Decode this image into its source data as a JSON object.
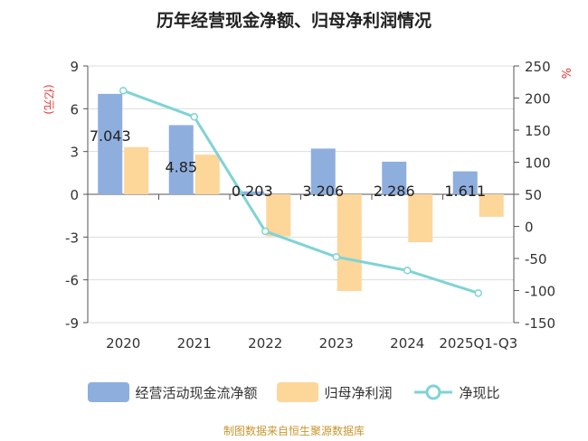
{
  "title": "历年经营现金净额、归母净利润情况",
  "source": "制图数据来自恒生聚源数据库",
  "chart_data": {
    "type": "bar+line",
    "categories": [
      "2020",
      "2021",
      "2022",
      "2023",
      "2024",
      "2025Q1-Q3"
    ],
    "left_axis": {
      "label": "(亿元)",
      "ylim": [
        -9,
        9
      ],
      "ticks": [
        9,
        6,
        3,
        0,
        -3,
        -6,
        -9
      ]
    },
    "right_axis": {
      "label": "%",
      "ylim": [
        -150,
        250
      ],
      "ticks": [
        250,
        200,
        150,
        100,
        50,
        0,
        -50,
        -100,
        -150
      ]
    },
    "grid": true,
    "legend": "bottom",
    "series": [
      {
        "name": "经营活动现金流净额",
        "type": "bar",
        "axis": "left",
        "color": "#8eaede",
        "values": [
          7.043,
          4.85,
          0.203,
          3.206,
          2.286,
          1.611
        ],
        "labels": [
          "7.043",
          "4.85",
          "0.203",
          "3.206",
          "2.286",
          "1.611"
        ]
      },
      {
        "name": "归母净利润",
        "type": "bar",
        "axis": "left",
        "color": "#fdd69a",
        "values": [
          3.31,
          2.78,
          -2.95,
          -6.79,
          -3.36,
          -1.58
        ]
      },
      {
        "name": "净现比",
        "type": "line",
        "axis": "right",
        "color": "#7fd3d6",
        "values": [
          211.5,
          170.7,
          -7.7,
          -47.6,
          -68.7,
          -104
        ]
      }
    ]
  }
}
